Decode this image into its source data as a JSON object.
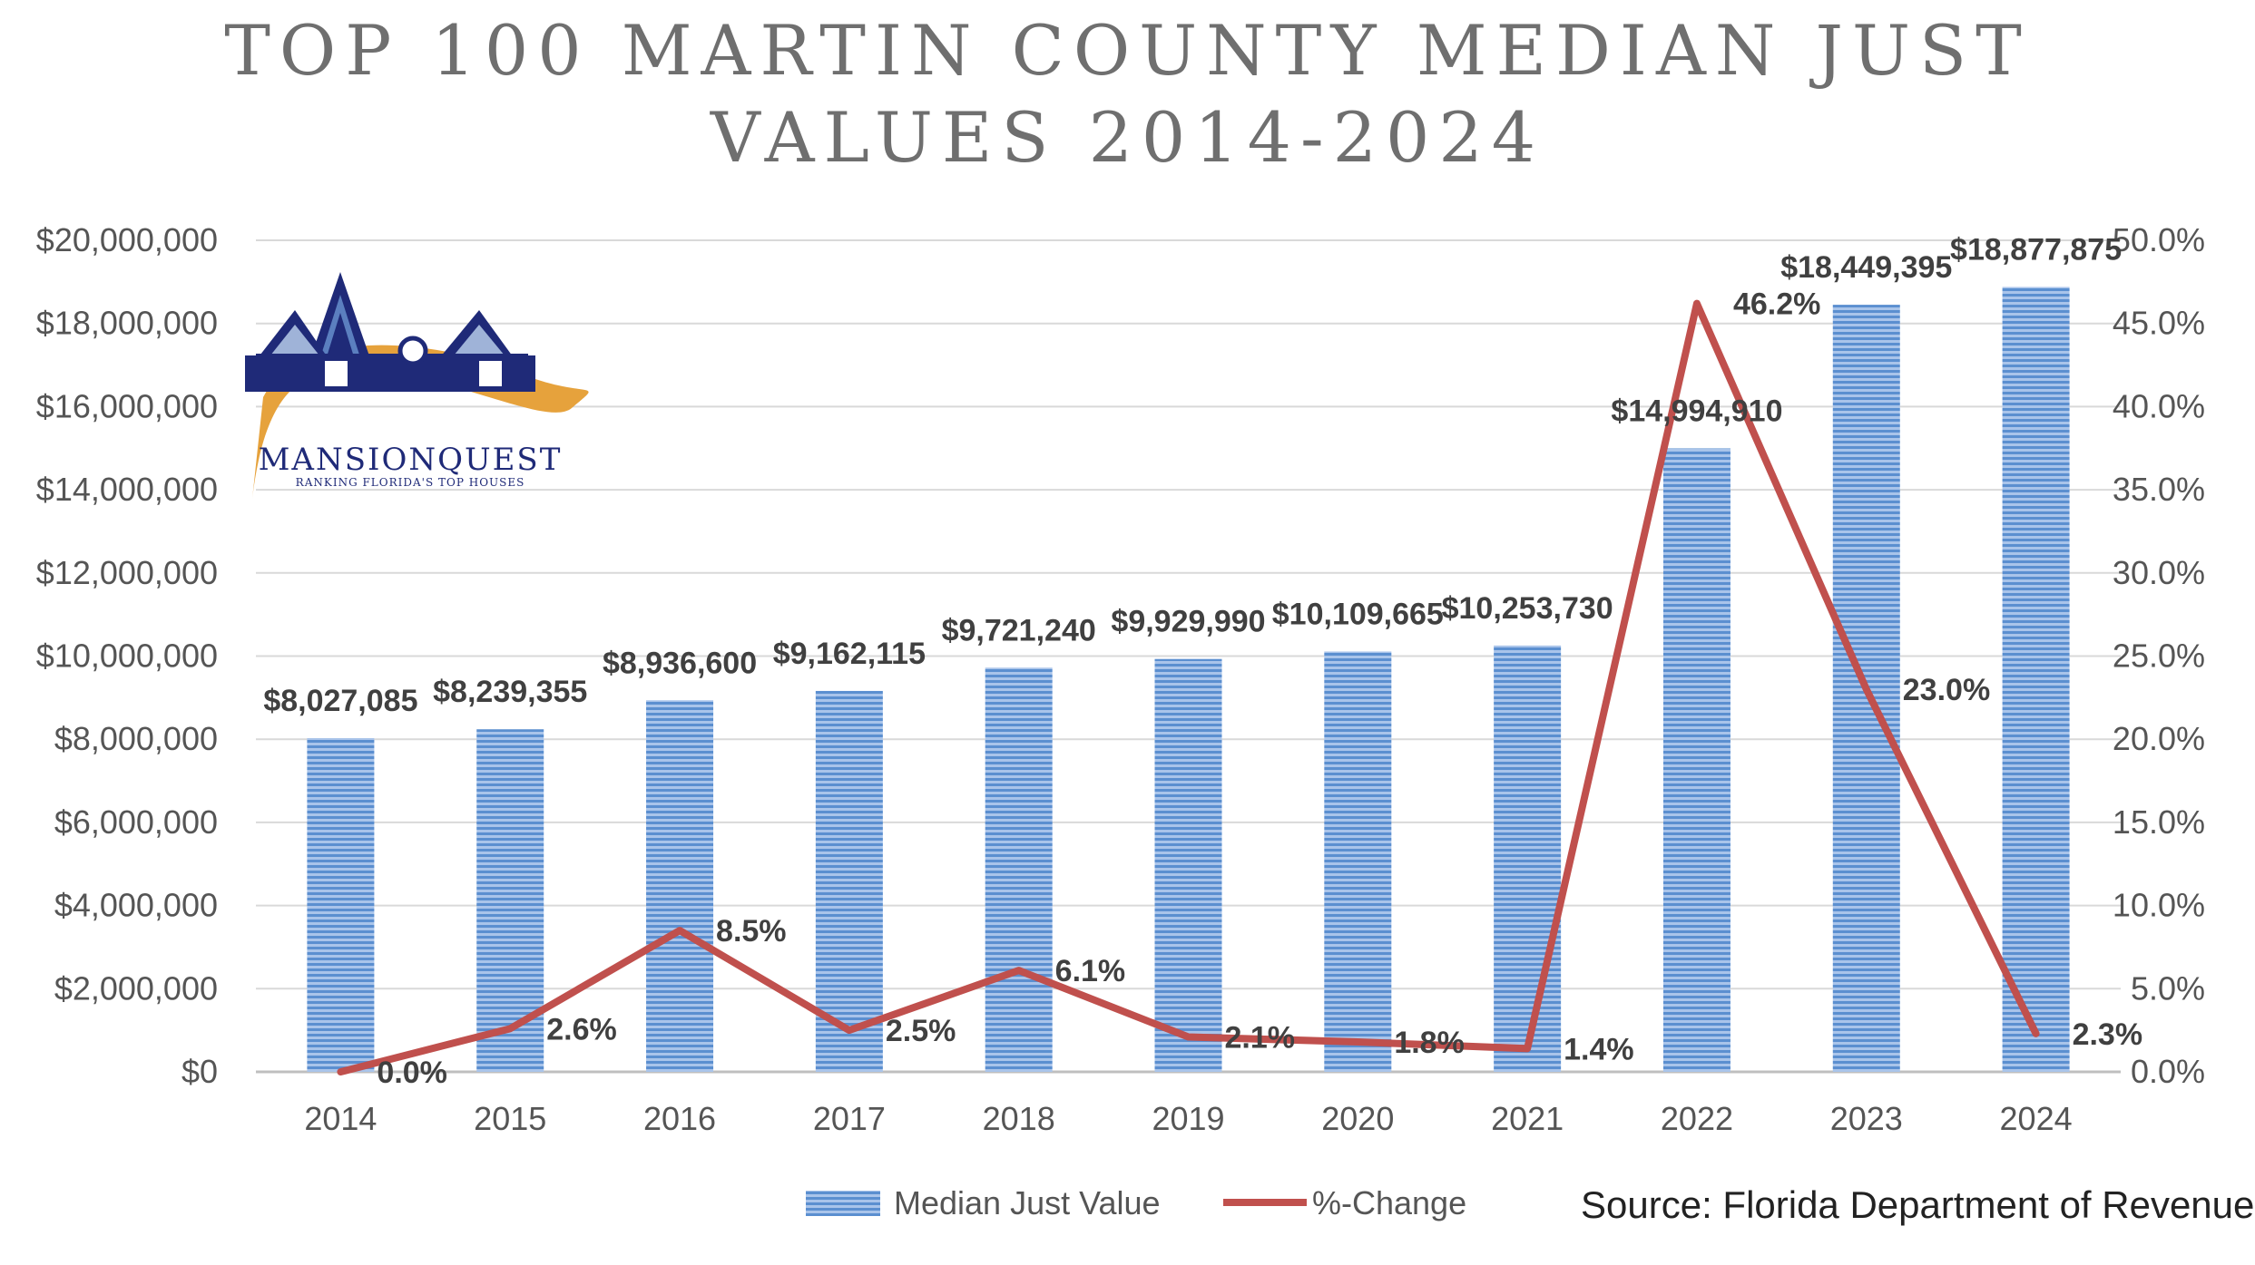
{
  "title_lines": [
    "TOP 100 MARTIN COUNTY MEDIAN JUST",
    "VALUES 2014-2024"
  ],
  "logo": {
    "name": "MANSIONQUEST",
    "tagline": "RANKING FLORIDA'S TOP HOUSES"
  },
  "source": "Source: Florida Department of Revenue",
  "colors": {
    "bar": "#5b8fd0",
    "bar_stripe": "#a9c4ea",
    "line": "#c0504d",
    "grid": "#d9d9d9",
    "logo_navy": "#1f2a78",
    "logo_gold": "#e6a23c"
  },
  "chart_data": {
    "type": "bar",
    "categories": [
      "2014",
      "2015",
      "2016",
      "2017",
      "2018",
      "2019",
      "2020",
      "2021",
      "2022",
      "2023",
      "2024"
    ],
    "series": [
      {
        "name": "Median Just Value",
        "type": "bar",
        "axis": "left",
        "values": [
          8027085,
          8239355,
          8936600,
          9162115,
          9721240,
          9929990,
          10109665,
          10253730,
          14994910,
          18449395,
          18877875
        ],
        "labels": [
          "$8,027,085",
          "$8,239,355",
          "$8,936,600",
          "$9,162,115",
          "$9,721,240",
          "$9,929,990",
          "$10,109,665",
          "$10,253,730",
          "$14,994,910",
          "$18,449,395",
          "$18,877,875"
        ]
      },
      {
        "name": "%-Change",
        "type": "line",
        "axis": "right",
        "values": [
          0.0,
          2.6,
          8.5,
          2.5,
          6.1,
          2.1,
          1.8,
          1.4,
          46.2,
          23.0,
          2.3
        ],
        "labels": [
          "0.0%",
          "2.6%",
          "8.5%",
          "2.5%",
          "6.1%",
          "2.1%",
          "1.8%",
          "1.4%",
          "46.2%",
          "23.0%",
          "2.3%"
        ]
      }
    ],
    "y_left": {
      "ylim": [
        0,
        20000000
      ],
      "ticks": [
        "$0",
        "$2,000,000",
        "$4,000,000",
        "$6,000,000",
        "$8,000,000",
        "$10,000,000",
        "$12,000,000",
        "$14,000,000",
        "$16,000,000",
        "$18,000,000",
        "$20,000,000"
      ]
    },
    "y_right": {
      "ylim": [
        0,
        50
      ],
      "ticks": [
        "0.0%",
        "5.0%",
        "10.0%",
        "15.0%",
        "20.0%",
        "25.0%",
        "30.0%",
        "35.0%",
        "40.0%",
        "45.0%",
        "50.0%"
      ]
    },
    "grid": true,
    "legend_position": "bottom-center"
  }
}
